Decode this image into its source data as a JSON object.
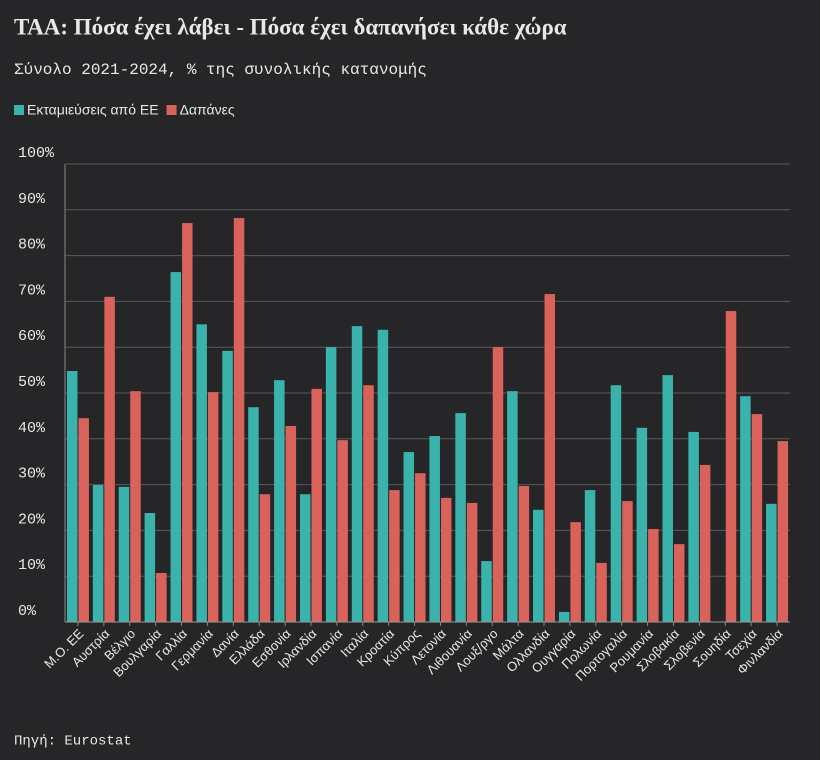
{
  "chart_data": {
    "type": "bar",
    "title": "ΤΑΑ: Πόσα έχει λάβει - Πόσα έχει δαπανήσει κάθε χώρα",
    "subtitle": "Σύνολο 2021-2024, % της συνολικής κατανομής",
    "source": "Πηγή: Eurostat",
    "categories": [
      "Μ.Ο. ΕΕ",
      "Αυστρία",
      "Βέλγιο",
      "Βουλγαρία",
      "Γαλλία",
      "Γερμανία",
      "Δανία",
      "Ελλάδα",
      "Εσθονία",
      "Ιρλανδία",
      "Ισπανία",
      "Ιταλία",
      "Κροατία",
      "Κύπρος",
      "Λετονία",
      "Λιθουανία",
      "Λουξ/ργο",
      "Μάλτα",
      "Ολλανδία",
      "Ουγγαρία",
      "Πολωνία",
      "Πορτογαλία",
      "Ρουμανία",
      "Σλοβακία",
      "Σλοβενία",
      "Σουηδία",
      "Τσεχία",
      "Φινλανδία"
    ],
    "series": [
      {
        "name": "Εκταμιεύσεις από ΕΕ",
        "color": "#3bb3ad",
        "values": [
          54.8,
          29.9,
          29.5,
          23.8,
          76.4,
          65.0,
          59.2,
          46.9,
          52.8,
          27.9,
          60.0,
          64.6,
          63.8,
          37.1,
          40.6,
          45.6,
          13.3,
          50.4,
          24.5,
          2.2,
          28.8,
          51.7,
          42.4,
          53.9,
          41.5,
          null,
          49.3,
          25.8
        ]
      },
      {
        "name": "Δαπάνες",
        "color": "#d9625a",
        "values": [
          44.5,
          71.0,
          50.4,
          10.7,
          87.1,
          50.2,
          88.2,
          27.9,
          42.8,
          50.9,
          39.7,
          51.7,
          28.8,
          32.5,
          27.1,
          26.0,
          60.0,
          29.7,
          71.6,
          21.8,
          12.9,
          26.4,
          20.3,
          17.0,
          34.3,
          67.9,
          45.4,
          39.5
        ]
      }
    ],
    "ylim": [
      0,
      100
    ],
    "yticks": [
      {
        "value": 0,
        "label": "0%"
      },
      {
        "value": 10,
        "label": "10%"
      },
      {
        "value": 20,
        "label": "20%"
      },
      {
        "value": 30,
        "label": "30%"
      },
      {
        "value": 40,
        "label": "40%"
      },
      {
        "value": 50,
        "label": "50%"
      },
      {
        "value": 60,
        "label": "60%"
      },
      {
        "value": 70,
        "label": "70%"
      },
      {
        "value": 80,
        "label": "80%"
      },
      {
        "value": 90,
        "label": "90%"
      },
      {
        "value": 100,
        "label": "100%"
      }
    ],
    "grid": true
  }
}
